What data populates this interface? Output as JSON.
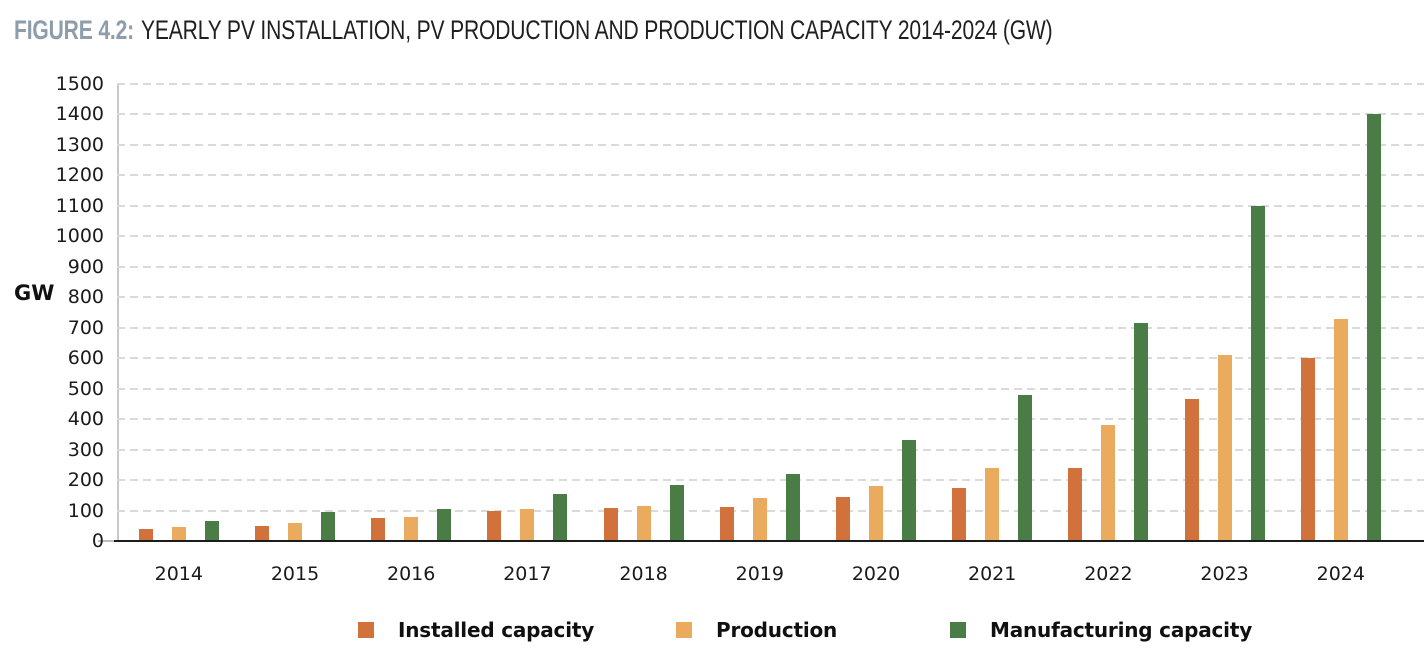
{
  "figure": {
    "label": "FIGURE 4.2:",
    "title": "YEARLY PV INSTALLATION, PV PRODUCTION AND PRODUCTION CAPACITY 2014-2024 (GW)"
  },
  "chart_data": {
    "type": "bar",
    "title": "Yearly PV installation, PV production and production capacity 2014-2024 (GW)",
    "ylabel": "GW",
    "xlabel": "",
    "ylim": [
      0,
      1500
    ],
    "ytick_step": 100,
    "grid": "horizontal-dashed",
    "legend_position": "bottom",
    "categories": [
      "2014",
      "2015",
      "2016",
      "2017",
      "2018",
      "2019",
      "2020",
      "2021",
      "2022",
      "2023",
      "2024"
    ],
    "series": [
      {
        "name": "Installed capacity",
        "color": "#D1713B",
        "values": [
          40,
          50,
          75,
          100,
          108,
          112,
          145,
          175,
          240,
          465,
          600
        ]
      },
      {
        "name": "Production",
        "color": "#EAAB5F",
        "values": [
          45,
          60,
          78,
          105,
          115,
          140,
          180,
          240,
          380,
          610,
          730
        ]
      },
      {
        "name": "Manufacturing capacity",
        "color": "#4A7C45",
        "values": [
          65,
          95,
          105,
          155,
          185,
          220,
          330,
          480,
          715,
          1100,
          1400
        ]
      }
    ]
  },
  "colors": {
    "figure_label": "#8E9DAB",
    "title_text": "#1F1F1F",
    "gridline": "#DADADA",
    "axis_line": "#C8C8C8",
    "baseline": "#1C1C1C",
    "background": "#FFFFFF"
  }
}
